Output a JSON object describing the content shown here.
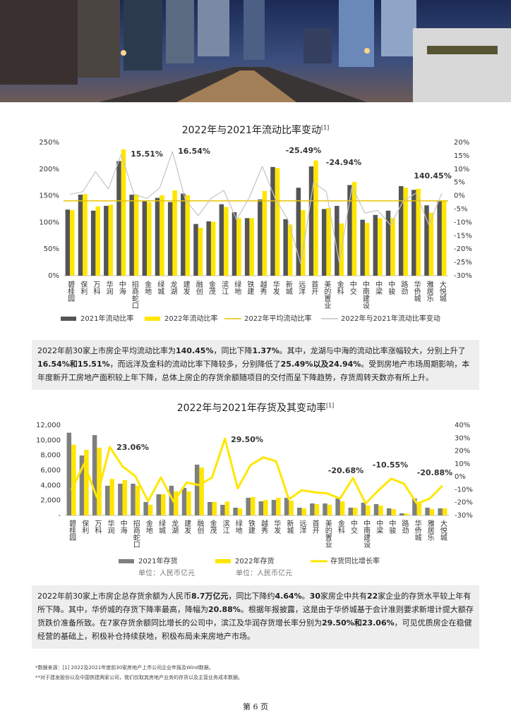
{
  "chart_data": [
    {
      "type": "bar",
      "title": "2022年与2021年流动比率变动",
      "title_ref": "[1]",
      "categories": [
        "碧桂园",
        "保利",
        "万科",
        "华润",
        "中海",
        "招商蛇口",
        "金地",
        "绿城",
        "龙湖",
        "建发",
        "融创",
        "金茂",
        "滨江",
        "绿地",
        "铁建",
        "越秀",
        "华发",
        "新城",
        "远洋",
        "首开",
        "美的置业",
        "金科",
        "中交",
        "中南建设",
        "中梁",
        "中骏",
        "路劲",
        "华侨城",
        "雅居乐",
        "大悦城"
      ],
      "series": [
        {
          "name": "2021年流动比率",
          "color": "#555555",
          "values": [
            124,
            152,
            122,
            131,
            215,
            152,
            140,
            146,
            138,
            154,
            97,
            102,
            134,
            119,
            108,
            143,
            204,
            106,
            165,
            205,
            125,
            131,
            170,
            105,
            114,
            122,
            168,
            161,
            132,
            140
          ]
        },
        {
          "name": "2022年流动比率",
          "color": "#ffe600",
          "values": [
            123,
            153,
            130,
            133,
            237,
            152,
            138,
            151,
            160,
            151,
            90,
            101,
            129,
            108,
            108,
            159,
            202,
            96,
            123,
            216,
            127,
            98,
            176,
            99,
            108,
            108,
            165,
            163,
            118,
            141
          ]
        },
        {
          "name": "2022年平均流动比率",
          "type": "hline",
          "color": "#e8c300",
          "value": 140.45
        },
        {
          "name": "2022年与2021年流动比率变动",
          "type": "line",
          "axis": "y2",
          "color": "#c4c4c4",
          "values": [
            0.5,
            1.5,
            9,
            2.5,
            15.51,
            0.5,
            -1,
            3,
            16.54,
            -1.5,
            -7.5,
            -1,
            2,
            -9,
            -0.5,
            11,
            -1,
            -9,
            -25.49,
            5,
            1.5,
            -24.94,
            3.5,
            -6.5,
            -5.5,
            -11,
            -2,
            1,
            -11,
            1
          ]
        }
      ],
      "ylim": [
        0,
        250
      ],
      "yticks": [
        {
          "value": 0,
          "label": "0%"
        },
        {
          "value": 50,
          "label": "50%"
        },
        {
          "value": 100,
          "label": "100%"
        },
        {
          "value": 150,
          "label": "150%"
        },
        {
          "value": 200,
          "label": "200%"
        },
        {
          "value": 250,
          "label": "250%"
        }
      ],
      "y2lim": [
        -30,
        20
      ],
      "y2ticks": [
        {
          "value": -30,
          "label": "-30%"
        },
        {
          "value": -25,
          "label": "-25%"
        },
        {
          "value": -20,
          "label": "-20%"
        },
        {
          "value": -15,
          "label": "-15%"
        },
        {
          "value": -10,
          "label": "-10%"
        },
        {
          "value": -5,
          "label": "-5%"
        },
        {
          "value": 0,
          "label": "0%"
        },
        {
          "value": 5,
          "label": "5%"
        },
        {
          "value": 10,
          "label": "10%"
        },
        {
          "value": 15,
          "label": "15%"
        },
        {
          "value": 20,
          "label": "20%"
        }
      ],
      "annotations": [
        "15.51%",
        "16.54%",
        "-25.49%",
        "-24.94%",
        "140.45%"
      ],
      "legend": "bottom"
    },
    {
      "type": "bar",
      "title": "2022年与2021年存货及其变动率",
      "title_ref": "[1]",
      "categories": [
        "碧桂园",
        "保利",
        "万科",
        "华润",
        "中海",
        "招商蛇口",
        "金地",
        "绿城",
        "龙湖",
        "建发",
        "融创",
        "金茂",
        "滨江",
        "绿地",
        "铁建",
        "越秀",
        "华发",
        "新城",
        "远洋",
        "首开",
        "美的置业",
        "金科",
        "中交",
        "中南建设",
        "中梁",
        "中骏",
        "路劲",
        "华侨城",
        "雅居乐",
        "大悦城"
      ],
      "series": [
        {
          "name": "2021年存货",
          "color": "#7f7f7f",
          "values": [
            11000,
            7970,
            10680,
            3940,
            4220,
            4220,
            1780,
            2810,
            3940,
            3660,
            6750,
            1780,
            1410,
            1030,
            2340,
            1870,
            2060,
            2340,
            1030,
            1590,
            1590,
            2250,
            1030,
            1690,
            1500,
            940,
            280,
            2250,
            1030,
            940
          ]
        },
        {
          "name": "2022年存货",
          "color": "#ffe600",
          "values": [
            9400,
            8720,
            9000,
            4850,
            4690,
            3940,
            1410,
            2810,
            3190,
            3190,
            6370,
            1780,
            1826,
            940,
            2440,
            2060,
            2340,
            1970,
            940,
            1500,
            1410,
            1870,
            1030,
            1340,
            1310,
            840,
            250,
            1780,
            840,
            940
          ]
        },
        {
          "name": "存货同比增长率",
          "type": "line",
          "axis": "y2",
          "color": "#ffe600",
          "values": [
            -10.5,
            10,
            -16,
            23.06,
            8,
            0.5,
            -19,
            -0.5,
            -19.5,
            -4.5,
            -6.5,
            -0.5,
            29.5,
            -9,
            9,
            15,
            12,
            -17.5,
            -10.5,
            -12,
            -13,
            -17,
            -1,
            -20.68,
            -10.55,
            -1.5,
            -5.5,
            -20.88,
            -17,
            -7
          ]
        }
      ],
      "units": [
        "单位：人民币亿元",
        "单位：人民币亿元"
      ],
      "ylim": [
        0,
        12000
      ],
      "yticks": [
        {
          "value": 0,
          "label": "-"
        },
        {
          "value": 2000,
          "label": "2,000"
        },
        {
          "value": 4000,
          "label": "4,000"
        },
        {
          "value": 6000,
          "label": "6,000"
        },
        {
          "value": 8000,
          "label": "8,000"
        },
        {
          "value": 10000,
          "label": "10,000"
        },
        {
          "value": 12000,
          "label": "12,000"
        }
      ],
      "y2lim": [
        -30,
        40
      ],
      "y2ticks": [
        {
          "value": -30,
          "label": "-30%"
        },
        {
          "value": -20,
          "label": "-20%"
        },
        {
          "value": -10,
          "label": "-10%"
        },
        {
          "value": 0,
          "label": "0%"
        },
        {
          "value": 10,
          "label": "10%"
        },
        {
          "value": 20,
          "label": "20%"
        },
        {
          "value": 30,
          "label": "30%"
        },
        {
          "value": 40,
          "label": "40%"
        }
      ],
      "annotations": [
        "23.06%",
        "29.50%",
        "-20.68%",
        "-10.55%",
        "-20.88%"
      ],
      "legend": "bottom"
    }
  ],
  "paragraphs": [
    [
      "2022年前30家上市房企平均流动比率为",
      "140.45%",
      "，同比下降",
      "1.37%",
      "。其中，龙湖与中海的流动比率涨幅较大，分别上升了",
      "16.54%和15.51%",
      "，而远洋及金科的流动比率下降较多，分别降低了",
      "25.49%以及24.94%",
      "。受到房地产市场周期影响，本年度新开工房地产面积较上年下降，总体上房企的存货余额随项目的交付而呈下降趋势，存货周转天数亦有所上升。"
    ],
    [
      "2022年前30家上市房企总存货余额为人民币",
      "8.7万亿元",
      "，同比下降约",
      "4.64%",
      "。",
      "30",
      "家房企中共有",
      "22",
      "家企业的存货水平较上年有所下降。其中，华侨城的存货下降率最高，降幅为",
      "20.88%",
      "。根据年报披露，这是由于华侨城基于会计准则要求新增计提大额存货跌价准备所致。在7家存货余额同比增长的公司中，滨江及华润存货增长率分别为",
      "29.50%和23.06%",
      "，可见优质房企在稳健经营的基础上，积极补仓持续获地，积极布局未来房地产市场。"
    ]
  ],
  "footnotes": [
    "*数据来源：[1] 2022及2021年度前30家房地产上市公司企业年报及Wind数据。",
    "**对于建发股份以及中国铁建两家公司，我们仅取其房地产业务的存货以及主营业务成本数据。"
  ],
  "page_number": "第 6 页"
}
